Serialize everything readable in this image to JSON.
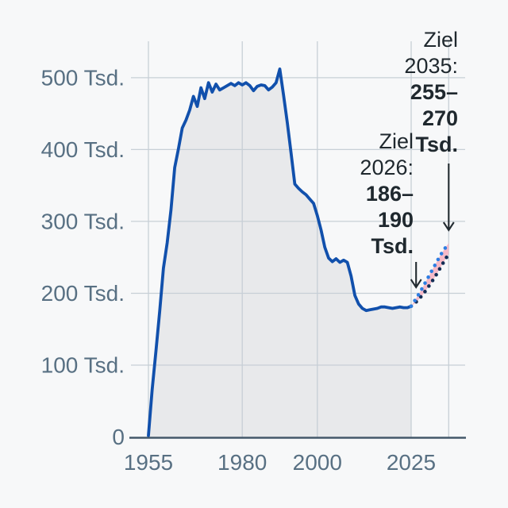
{
  "chart_data": {
    "type": "line",
    "title": "",
    "unit": "Tsd.",
    "xlim": [
      1955,
      2035
    ],
    "ylim": [
      0,
      550
    ],
    "grid": true,
    "legend": "none",
    "x_axis": {
      "tick_years": [
        1955,
        1980,
        2000,
        2025
      ],
      "tick_labels": [
        "1955",
        "1980",
        "2000",
        "2025"
      ],
      "gridline_years": [
        1955,
        1980,
        2000,
        2025,
        2035
      ]
    },
    "y_axis": {
      "tick_values": [
        0,
        100,
        200,
        300,
        400,
        500
      ],
      "tick_labels": [
        "0",
        "100 Tsd.",
        "200 Tsd.",
        "300 Tsd.",
        "400 Tsd.",
        "500 Tsd."
      ]
    },
    "series": [
      {
        "name": "history-line",
        "color": "#1150ac",
        "fill_color": "#e8e9eb",
        "x": [
          1955,
          1956,
          1957,
          1958,
          1959,
          1960,
          1961,
          1962,
          1963,
          1964,
          1965,
          1966,
          1967,
          1968,
          1969,
          1970,
          1971,
          1972,
          1973,
          1974,
          1975,
          1976,
          1977,
          1978,
          1979,
          1980,
          1981,
          1982,
          1983,
          1984,
          1985,
          1986,
          1987,
          1988,
          1989,
          1990,
          1991,
          1992,
          1993,
          1994,
          1995,
          1996,
          1997,
          1998,
          1999,
          2000,
          2001,
          2002,
          2003,
          2004,
          2005,
          2006,
          2007,
          2008,
          2009,
          2010,
          2011,
          2012,
          2013,
          2014,
          2015,
          2016,
          2017,
          2018,
          2019,
          2020,
          2021,
          2022,
          2023,
          2024,
          2025
        ],
        "values": [
          2,
          66,
          120,
          175,
          235,
          270,
          316,
          375,
          401,
          430,
          441,
          455,
          474,
          460,
          486,
          471,
          493,
          480,
          491,
          483,
          486,
          489,
          492,
          489,
          493,
          490,
          493,
          489,
          482,
          488,
          490,
          489,
          483,
          487,
          493,
          512,
          476,
          437,
          395,
          352,
          346,
          341,
          337,
          331,
          325,
          308,
          288,
          264,
          249,
          244,
          248,
          243,
          246,
          243,
          224,
          197,
          185,
          179,
          176,
          177,
          178,
          179,
          181,
          181,
          180,
          179,
          180,
          181,
          180,
          180,
          182
        ]
      }
    ],
    "projection": {
      "x": [
        2025,
        2026,
        2027,
        2028,
        2029,
        2030,
        2031,
        2032,
        2033,
        2034,
        2035
      ],
      "upper": {
        "name": "target-upper-dotted",
        "color": "#2d7ee3",
        "values": [
          182,
          190,
          198.5,
          207.5,
          217,
          226.5,
          236,
          245.5,
          254.5,
          262.5,
          270
        ]
      },
      "lower": {
        "name": "target-lower-dotted",
        "color": "#132e56",
        "values": [
          182,
          186,
          191.5,
          197.5,
          204.5,
          212,
          220,
          228.5,
          237.5,
          246.5,
          255
        ]
      },
      "band_color": "#f6bac8"
    },
    "annotations": [
      {
        "id": "ziel-2026",
        "target_year": 2026,
        "lines": [
          "Ziel",
          "2026:",
          "186–",
          "190",
          "Tsd."
        ],
        "bold_lines": [
          "186–",
          "190",
          "Tsd."
        ]
      },
      {
        "id": "ziel-2035",
        "target_year": 2035,
        "lines": [
          "Ziel",
          "2035:",
          "255–",
          "270",
          "Tsd."
        ],
        "bold_lines": [
          "255–",
          "270",
          "Tsd."
        ]
      }
    ]
  },
  "colors": {
    "background": "#f7f8f9",
    "gridline": "#c7cfd6",
    "axis_line": "#44586a",
    "tick_label": "#587083",
    "annotation_text": "#1f282e",
    "history_line": "#1150ac",
    "area_fill": "#e8e9eb",
    "projection_upper": "#2d7ee3",
    "projection_lower": "#132e56",
    "projection_band": "#f6bac8",
    "arrow": "#222b31"
  }
}
